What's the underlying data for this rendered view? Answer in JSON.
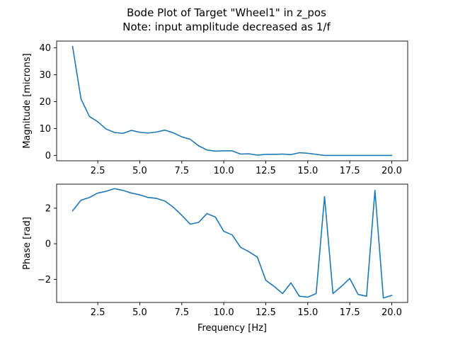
{
  "figure": {
    "title_line1": "Bode Plot of Target \"Wheel1\" in z_pos",
    "title_line2": "Note: input amplitude decreased as 1/f"
  },
  "chart_data": [
    {
      "type": "line",
      "ylabel": "Magnitude [microns]",
      "xlabel": "",
      "xlim": [
        0.05,
        20.95
      ],
      "ylim": [
        -2.0,
        42.5
      ],
      "xticks": [
        2.5,
        5.0,
        7.5,
        10.0,
        12.5,
        15.0,
        17.5,
        20.0
      ],
      "xtick_labels": [
        "2.5",
        "5.0",
        "7.5",
        "10.0",
        "12.5",
        "15.0",
        "17.5",
        "20.0"
      ],
      "yticks": [
        0,
        10,
        20,
        30,
        40
      ],
      "ytick_labels": [
        "0",
        "10",
        "20",
        "30",
        "40"
      ],
      "grid": false,
      "color": "#1f77b4",
      "series": [
        {
          "x": [
            1.0,
            1.5,
            2.0,
            2.5,
            3.0,
            3.5,
            4.0,
            4.5,
            5.0,
            5.5,
            6.0,
            6.5,
            7.0,
            7.5,
            8.0,
            8.5,
            9.0,
            9.5,
            10.0,
            10.5,
            11.0,
            11.5,
            12.0,
            12.5,
            13.0,
            13.5,
            14.0,
            14.5,
            15.0,
            15.5,
            16.0,
            16.5,
            17.0,
            17.5,
            18.0,
            18.5,
            19.0,
            19.5,
            20.0
          ],
          "y": [
            40.5,
            21.0,
            14.5,
            12.5,
            9.8,
            8.5,
            8.2,
            9.3,
            8.6,
            8.3,
            8.7,
            9.4,
            8.4,
            6.9,
            6.0,
            3.6,
            2.0,
            1.6,
            1.7,
            1.7,
            0.5,
            0.6,
            0.1,
            0.4,
            0.4,
            0.5,
            0.3,
            1.0,
            0.8,
            0.4,
            0.0,
            0.0,
            0.0,
            0.0,
            0.0,
            0.0,
            0.0,
            0.0,
            0.0
          ]
        }
      ]
    },
    {
      "type": "line",
      "ylabel": "Phase [rad]",
      "xlabel": "Frequency [Hz]",
      "xlim": [
        0.05,
        20.95
      ],
      "ylim": [
        -3.3,
        3.35
      ],
      "xticks": [
        2.5,
        5.0,
        7.5,
        10.0,
        12.5,
        15.0,
        17.5,
        20.0
      ],
      "xtick_labels": [
        "2.5",
        "5.0",
        "7.5",
        "10.0",
        "12.5",
        "15.0",
        "17.5",
        "20.0"
      ],
      "yticks": [
        -2,
        0,
        2
      ],
      "ytick_labels": [
        "−2",
        "0",
        "2"
      ],
      "grid": false,
      "color": "#1f77b4",
      "series": [
        {
          "x": [
            1.0,
            1.5,
            2.0,
            2.5,
            3.0,
            3.5,
            4.0,
            4.5,
            5.0,
            5.5,
            6.0,
            6.5,
            7.0,
            7.5,
            8.0,
            8.5,
            9.0,
            9.5,
            10.0,
            10.5,
            11.0,
            11.5,
            12.0,
            12.5,
            13.0,
            13.5,
            14.0,
            14.5,
            15.0,
            15.5,
            16.0,
            16.5,
            17.0,
            17.5,
            18.0,
            18.5,
            19.0,
            19.5,
            20.0
          ],
          "y": [
            1.85,
            2.45,
            2.6,
            2.85,
            2.95,
            3.1,
            3.0,
            2.85,
            2.75,
            2.6,
            2.55,
            2.4,
            2.05,
            1.6,
            1.1,
            1.2,
            1.7,
            1.5,
            0.7,
            0.5,
            -0.2,
            -0.45,
            -0.75,
            -2.05,
            -2.4,
            -2.8,
            -2.2,
            -2.95,
            -3.0,
            -2.8,
            2.65,
            -2.8,
            -2.4,
            -1.95,
            -2.85,
            -2.95,
            3.0,
            -3.05,
            -2.9
          ]
        }
      ]
    }
  ]
}
